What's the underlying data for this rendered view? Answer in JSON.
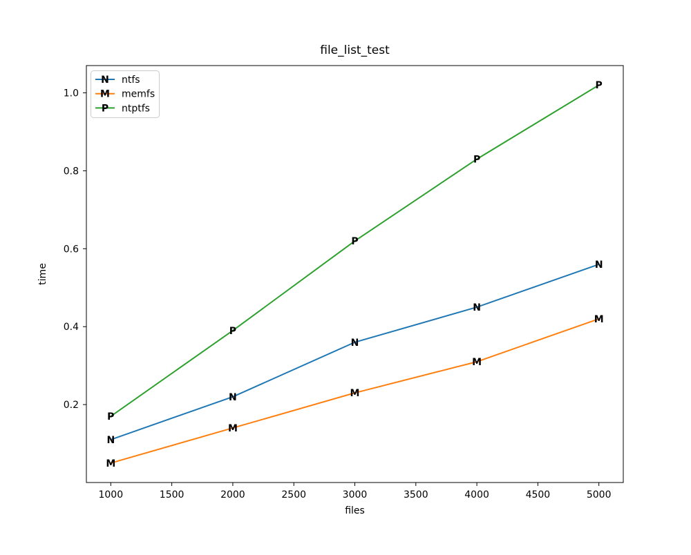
{
  "chart_data": {
    "type": "line",
    "title": "file_list_test",
    "xlabel": "files",
    "ylabel": "time",
    "x": [
      1000,
      2000,
      3000,
      4000,
      5000
    ],
    "series": [
      {
        "name": "ntfs",
        "marker": "N",
        "color": "#1f77b4",
        "values": [
          0.11,
          0.22,
          0.36,
          0.45,
          0.56
        ]
      },
      {
        "name": "memfs",
        "marker": "M",
        "color": "#ff7f0e",
        "values": [
          0.05,
          0.14,
          0.23,
          0.31,
          0.42
        ]
      },
      {
        "name": "ntptfs",
        "marker": "P",
        "color": "#2ca02c",
        "values": [
          0.17,
          0.39,
          0.62,
          0.83,
          1.02
        ]
      }
    ],
    "xticks": [
      1000,
      1500,
      2000,
      2500,
      3000,
      3500,
      4000,
      4500,
      5000
    ],
    "yticks": [
      0.2,
      0.4,
      0.6,
      0.8,
      1.0
    ],
    "ytick_labels": [
      "0.2",
      "0.4",
      "0.6",
      "0.8",
      "1.0"
    ],
    "xlim": [
      800,
      5200
    ],
    "ylim": [
      0.0,
      1.07
    ],
    "grid": false,
    "legend_position": "upper left",
    "background_color": "#ffffff",
    "spine_color": "#000000",
    "legend_border_color": "#cccccc"
  }
}
